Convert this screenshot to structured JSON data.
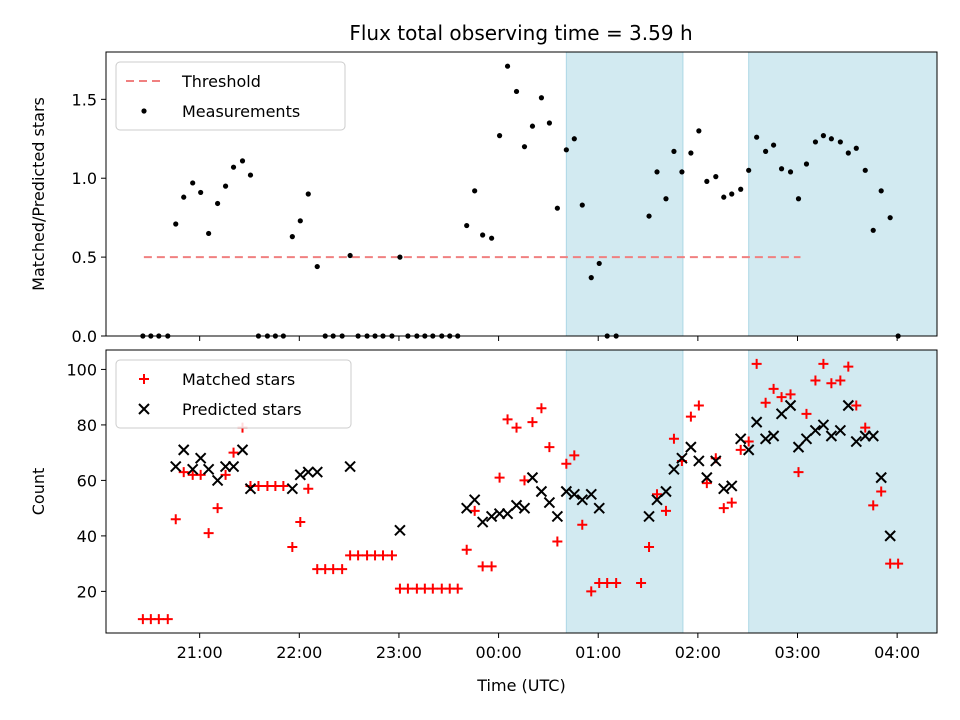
{
  "title": "Flux total observing time = 3.59 h",
  "colors": {
    "threshold": "#f08080",
    "measurements": "#000000",
    "matched": "#ff0000",
    "predicted": "#000000",
    "shade": "#add8e6"
  },
  "chart_data": [
    {
      "type": "scatter",
      "title": "Flux total observing time = 3.59 h",
      "xlabel": "",
      "ylabel": "Matched/Predicted stars",
      "x_unit": "hours since 20:00 UTC",
      "xlim": [
        20.06,
        28.4
      ],
      "ylim": [
        0,
        1.8
      ],
      "y_ticks": [
        0.0,
        0.5,
        1.0,
        1.5
      ],
      "y_tick_labels": [
        "0.0",
        "0.5",
        "1.0",
        "1.5"
      ],
      "legend": [
        "Threshold",
        "Measurements"
      ],
      "legend_position": "top-left",
      "shaded_x_ranges": [
        [
          24.68,
          25.85
        ],
        [
          26.51,
          28.93
        ]
      ],
      "series": [
        {
          "name": "Threshold",
          "kind": "dashed-line",
          "x": [
            20.44,
            27.03
          ],
          "y": [
            0.5,
            0.5
          ]
        },
        {
          "name": "Measurements",
          "kind": "dots",
          "points": [
            [
              20.43,
              0
            ],
            [
              20.51,
              0
            ],
            [
              20.59,
              0
            ],
            [
              20.68,
              0
            ],
            [
              20.76,
              0.71
            ],
            [
              20.84,
              0.88
            ],
            [
              20.93,
              0.97
            ],
            [
              21.01,
              0.91
            ],
            [
              21.09,
              0.65
            ],
            [
              21.18,
              0.84
            ],
            [
              21.26,
              0.95
            ],
            [
              21.34,
              1.07
            ],
            [
              21.43,
              1.11
            ],
            [
              21.51,
              1.02
            ],
            [
              21.59,
              0
            ],
            [
              21.68,
              0
            ],
            [
              21.76,
              0
            ],
            [
              21.84,
              0
            ],
            [
              21.93,
              0.63
            ],
            [
              22.01,
              0.73
            ],
            [
              22.09,
              0.9
            ],
            [
              22.18,
              0.44
            ],
            [
              22.26,
              0
            ],
            [
              22.34,
              0
            ],
            [
              22.43,
              0
            ],
            [
              22.51,
              0.51
            ],
            [
              22.59,
              0
            ],
            [
              22.68,
              0
            ],
            [
              22.76,
              0
            ],
            [
              22.84,
              0
            ],
            [
              22.93,
              0
            ],
            [
              23.01,
              0.5
            ],
            [
              23.09,
              0
            ],
            [
              23.18,
              0
            ],
            [
              23.26,
              0
            ],
            [
              23.34,
              0
            ],
            [
              23.43,
              0
            ],
            [
              23.51,
              0
            ],
            [
              23.59,
              0
            ],
            [
              23.68,
              0.7
            ],
            [
              23.76,
              0.92
            ],
            [
              23.84,
              0.64
            ],
            [
              23.93,
              0.62
            ],
            [
              24.01,
              1.27
            ],
            [
              24.09,
              1.71
            ],
            [
              24.18,
              1.55
            ],
            [
              24.26,
              1.2
            ],
            [
              24.34,
              1.33
            ],
            [
              24.43,
              1.51
            ],
            [
              24.51,
              1.35
            ],
            [
              24.59,
              0.81
            ],
            [
              24.68,
              1.18
            ],
            [
              24.76,
              1.25
            ],
            [
              24.84,
              0.83
            ],
            [
              24.93,
              0.37
            ],
            [
              25.01,
              0.46
            ],
            [
              25.09,
              0
            ],
            [
              25.18,
              0
            ],
            [
              25.51,
              0.76
            ],
            [
              25.59,
              1.04
            ],
            [
              25.68,
              0.87
            ],
            [
              25.76,
              1.17
            ],
            [
              25.84,
              1.04
            ],
            [
              25.93,
              1.16
            ],
            [
              26.01,
              1.3
            ],
            [
              26.09,
              0.98
            ],
            [
              26.18,
              1.01
            ],
            [
              26.26,
              0.88
            ],
            [
              26.34,
              0.9
            ],
            [
              26.43,
              0.93
            ],
            [
              26.51,
              1.05
            ],
            [
              26.59,
              1.26
            ],
            [
              26.68,
              1.17
            ],
            [
              26.76,
              1.21
            ],
            [
              26.84,
              1.06
            ],
            [
              26.93,
              1.04
            ],
            [
              27.01,
              0.87
            ],
            [
              27.09,
              1.09
            ],
            [
              27.18,
              1.23
            ],
            [
              27.26,
              1.27
            ],
            [
              27.34,
              1.25
            ],
            [
              27.43,
              1.23
            ],
            [
              27.51,
              1.16
            ],
            [
              27.59,
              1.19
            ],
            [
              27.68,
              1.05
            ],
            [
              27.76,
              0.67
            ],
            [
              27.84,
              0.92
            ],
            [
              27.93,
              0.75
            ],
            [
              28.01,
              0
            ]
          ]
        }
      ]
    },
    {
      "type": "scatter",
      "title": "",
      "xlabel": "Time (UTC)",
      "ylabel": "Count",
      "x_unit": "hours since 20:00 UTC",
      "xlim": [
        20.06,
        28.4
      ],
      "ylim": [
        5,
        107
      ],
      "y_ticks": [
        20,
        40,
        60,
        80,
        100
      ],
      "y_tick_labels": [
        "20",
        "40",
        "60",
        "80",
        "100"
      ],
      "x_ticks": [
        21,
        22,
        23,
        24,
        25,
        26,
        27,
        28
      ],
      "x_tick_labels": [
        "21:00",
        "22:00",
        "23:00",
        "00:00",
        "01:00",
        "02:00",
        "03:00",
        "04:00"
      ],
      "legend": [
        "Matched stars",
        "Predicted stars"
      ],
      "legend_position": "top-left",
      "shaded_x_ranges": [
        [
          24.68,
          25.85
        ],
        [
          26.51,
          28.93
        ]
      ],
      "series": [
        {
          "name": "Matched stars",
          "marker": "+",
          "points": [
            [
              20.43,
              10
            ],
            [
              20.51,
              10
            ],
            [
              20.59,
              10
            ],
            [
              20.68,
              10
            ],
            [
              20.76,
              46
            ],
            [
              20.84,
              63
            ],
            [
              20.93,
              62
            ],
            [
              21.01,
              62
            ],
            [
              21.09,
              41
            ],
            [
              21.18,
              50
            ],
            [
              21.26,
              62
            ],
            [
              21.34,
              70
            ],
            [
              21.43,
              79
            ],
            [
              21.51,
              58
            ],
            [
              21.59,
              58
            ],
            [
              21.68,
              58
            ],
            [
              21.76,
              58
            ],
            [
              21.84,
              58
            ],
            [
              21.93,
              36
            ],
            [
              22.01,
              45
            ],
            [
              22.09,
              57
            ],
            [
              22.18,
              28
            ],
            [
              22.26,
              28
            ],
            [
              22.34,
              28
            ],
            [
              22.43,
              28
            ],
            [
              22.51,
              33
            ],
            [
              22.59,
              33
            ],
            [
              22.68,
              33
            ],
            [
              22.76,
              33
            ],
            [
              22.84,
              33
            ],
            [
              22.93,
              33
            ],
            [
              23.01,
              21
            ],
            [
              23.09,
              21
            ],
            [
              23.18,
              21
            ],
            [
              23.26,
              21
            ],
            [
              23.34,
              21
            ],
            [
              23.43,
              21
            ],
            [
              23.51,
              21
            ],
            [
              23.59,
              21
            ],
            [
              23.68,
              35
            ],
            [
              23.76,
              49
            ],
            [
              23.84,
              29
            ],
            [
              23.93,
              29
            ],
            [
              24.01,
              61
            ],
            [
              24.09,
              82
            ],
            [
              24.18,
              79
            ],
            [
              24.26,
              60
            ],
            [
              24.34,
              81
            ],
            [
              24.43,
              86
            ],
            [
              24.51,
              72
            ],
            [
              24.59,
              38
            ],
            [
              24.68,
              66
            ],
            [
              24.76,
              69
            ],
            [
              24.84,
              44
            ],
            [
              24.93,
              20
            ],
            [
              25.01,
              23
            ],
            [
              25.09,
              23
            ],
            [
              25.18,
              23
            ],
            [
              25.43,
              23
            ],
            [
              25.51,
              36
            ],
            [
              25.59,
              55
            ],
            [
              25.68,
              49
            ],
            [
              25.76,
              75
            ],
            [
              25.84,
              67
            ],
            [
              25.93,
              83
            ],
            [
              26.01,
              87
            ],
            [
              26.09,
              59
            ],
            [
              26.18,
              68
            ],
            [
              26.26,
              50
            ],
            [
              26.34,
              52
            ],
            [
              26.43,
              71
            ],
            [
              26.51,
              74
            ],
            [
              26.59,
              102
            ],
            [
              26.68,
              88
            ],
            [
              26.76,
              93
            ],
            [
              26.84,
              90
            ],
            [
              26.93,
              91
            ],
            [
              27.01,
              63
            ],
            [
              27.09,
              84
            ],
            [
              27.18,
              96
            ],
            [
              27.26,
              102
            ],
            [
              27.34,
              95
            ],
            [
              27.43,
              96
            ],
            [
              27.51,
              101
            ],
            [
              27.59,
              87
            ],
            [
              27.68,
              79
            ],
            [
              27.76,
              51
            ],
            [
              27.84,
              56
            ],
            [
              27.93,
              30
            ],
            [
              28.01,
              30
            ]
          ]
        },
        {
          "name": "Predicted stars",
          "marker": "x",
          "points": [
            [
              20.76,
              65
            ],
            [
              20.84,
              71
            ],
            [
              20.93,
              64
            ],
            [
              21.01,
              68
            ],
            [
              21.09,
              64
            ],
            [
              21.18,
              60
            ],
            [
              21.26,
              65
            ],
            [
              21.34,
              65
            ],
            [
              21.43,
              71
            ],
            [
              21.51,
              57
            ],
            [
              21.93,
              57
            ],
            [
              22.01,
              62
            ],
            [
              22.09,
              63
            ],
            [
              22.18,
              63
            ],
            [
              22.51,
              65
            ],
            [
              23.01,
              42
            ],
            [
              23.68,
              50
            ],
            [
              23.76,
              53
            ],
            [
              23.84,
              45
            ],
            [
              23.93,
              47
            ],
            [
              24.01,
              48
            ],
            [
              24.09,
              48
            ],
            [
              24.18,
              51
            ],
            [
              24.26,
              50
            ],
            [
              24.34,
              61
            ],
            [
              24.43,
              56
            ],
            [
              24.51,
              52
            ],
            [
              24.59,
              47
            ],
            [
              24.68,
              56
            ],
            [
              24.76,
              55
            ],
            [
              24.84,
              53
            ],
            [
              24.93,
              55
            ],
            [
              25.01,
              50
            ],
            [
              25.51,
              47
            ],
            [
              25.59,
              53
            ],
            [
              25.68,
              56
            ],
            [
              25.76,
              64
            ],
            [
              25.84,
              68
            ],
            [
              25.93,
              72
            ],
            [
              26.01,
              67
            ],
            [
              26.09,
              61
            ],
            [
              26.18,
              67
            ],
            [
              26.26,
              57
            ],
            [
              26.34,
              58
            ],
            [
              26.43,
              75
            ],
            [
              26.51,
              71
            ],
            [
              26.59,
              81
            ],
            [
              26.68,
              75
            ],
            [
              26.76,
              76
            ],
            [
              26.84,
              84
            ],
            [
              26.93,
              87
            ],
            [
              27.01,
              72
            ],
            [
              27.09,
              75
            ],
            [
              27.18,
              78
            ],
            [
              27.26,
              80
            ],
            [
              27.34,
              76
            ],
            [
              27.43,
              78
            ],
            [
              27.51,
              87
            ],
            [
              27.59,
              74
            ],
            [
              27.68,
              76
            ],
            [
              27.76,
              76
            ],
            [
              27.84,
              61
            ],
            [
              27.93,
              40
            ]
          ]
        }
      ]
    }
  ]
}
